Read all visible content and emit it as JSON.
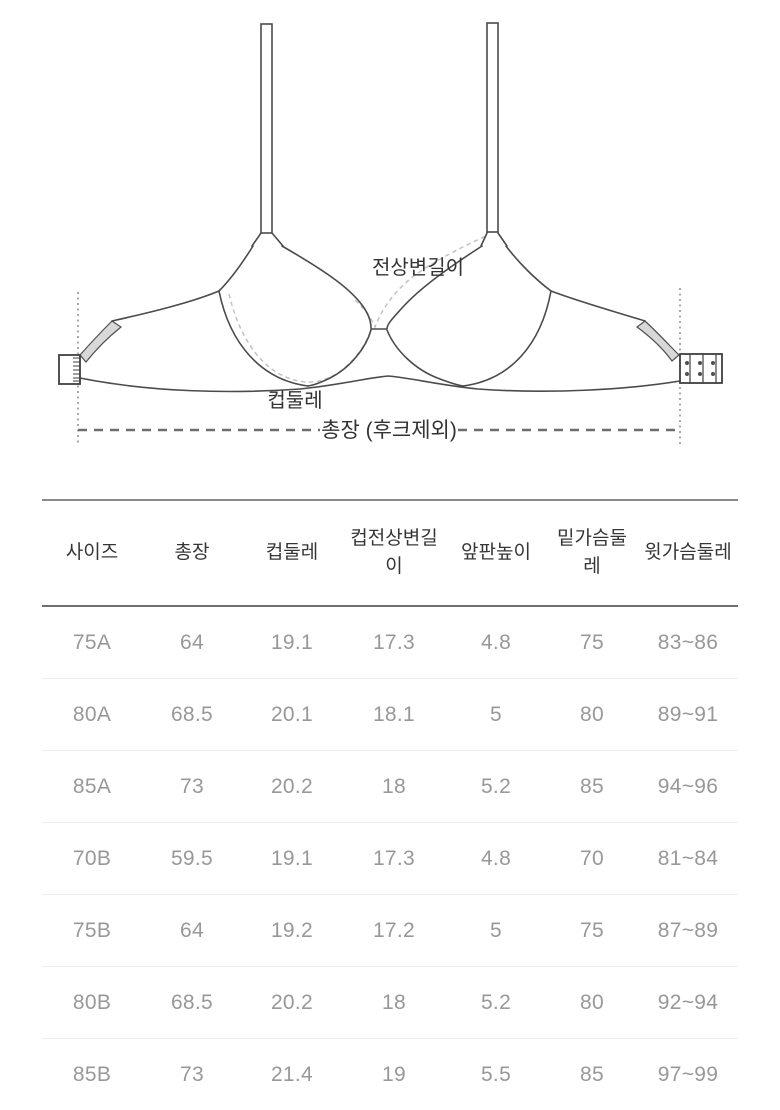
{
  "diagram": {
    "labels": {
      "front_top_edge_length": "전상변길이",
      "cup_circumference": "컵둘레",
      "total_length_excluding_hooks": "총장 (후크제외)"
    }
  },
  "size_table": {
    "columns": [
      "사이즈",
      "총장",
      "컵둘레",
      "컵전상변길\n이",
      "앞판높이",
      "밑가슴둘\n레",
      "윗가슴둘레"
    ],
    "rows": [
      [
        "75A",
        "64",
        "19.1",
        "17.3",
        "4.8",
        "75",
        "83~86"
      ],
      [
        "80A",
        "68.5",
        "20.1",
        "18.1",
        "5",
        "80",
        "89~91"
      ],
      [
        "85A",
        "73",
        "20.2",
        "18",
        "5.2",
        "85",
        "94~96"
      ],
      [
        "70B",
        "59.5",
        "19.1",
        "17.3",
        "4.8",
        "70",
        "81~84"
      ],
      [
        "75B",
        "64",
        "19.2",
        "17.2",
        "5",
        "75",
        "87~89"
      ],
      [
        "80B",
        "68.5",
        "20.2",
        "18",
        "5.2",
        "80",
        "92~94"
      ],
      [
        "85B",
        "73",
        "21.4",
        "19",
        "5.5",
        "85",
        "97~99"
      ]
    ]
  },
  "colors": {
    "diagram_stroke": "#4b4b4b",
    "trim_fill": "#d8d8d8",
    "dashed_measure": "#c2c2c2",
    "dotted_guide": "#8e8e8e",
    "header_text": "#363636",
    "data_text": "#989898",
    "table_line_dark": "#6e6e6e",
    "table_line_light": "#ececec"
  }
}
